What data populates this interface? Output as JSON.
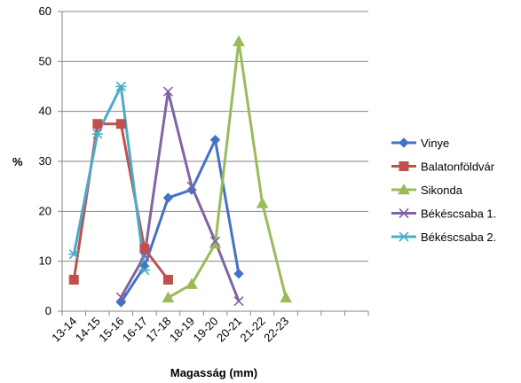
{
  "chart_data": {
    "type": "line",
    "title": "",
    "xlabel": "Magasság (mm)",
    "ylabel": "%",
    "ylim": [
      0,
      60
    ],
    "yticks": [
      0,
      10,
      20,
      30,
      40,
      50,
      60
    ],
    "categories": [
      "13-14",
      "14-15",
      "15-16",
      "16-17",
      "17-18",
      "18-19",
      "19-20",
      "20-21",
      "21-22",
      "22-23",
      "",
      "",
      ""
    ],
    "grid": "horizontal",
    "legend_position": "right",
    "series": [
      {
        "name": "Vinye",
        "color": "#4472C4",
        "marker": "diamond",
        "points": [
          [
            2.5,
            1.8
          ],
          [
            3.5,
            9.0
          ],
          [
            4.5,
            22.7
          ],
          [
            5.5,
            24.3
          ],
          [
            6.5,
            34.3
          ],
          [
            7.5,
            7.5
          ]
        ]
      },
      {
        "name": "Balatonföldvár",
        "color": "#C0504D",
        "marker": "square",
        "points": [
          [
            0.5,
            6.3
          ],
          [
            1.5,
            37.5
          ],
          [
            2.5,
            37.5
          ],
          [
            3.5,
            12.5
          ],
          [
            4.5,
            6.3
          ]
        ]
      },
      {
        "name": "Sikonda",
        "color": "#9BBB59",
        "marker": "triangle",
        "points": [
          [
            4.5,
            2.7
          ],
          [
            5.5,
            5.4
          ],
          [
            6.5,
            13.5
          ],
          [
            7.5,
            54.0
          ],
          [
            8.5,
            21.6
          ],
          [
            9.5,
            2.7
          ]
        ]
      },
      {
        "name": "Békéscsaba 1.",
        "color": "#8064A2",
        "marker": "x",
        "points": [
          [
            2.5,
            2.8
          ],
          [
            3.5,
            11.1
          ],
          [
            4.5,
            44.0
          ],
          [
            5.5,
            25.0
          ],
          [
            6.5,
            14.0
          ],
          [
            7.5,
            2.0
          ]
        ]
      },
      {
        "name": "Békéscsaba 2.",
        "color": "#4BACC6",
        "marker": "star",
        "points": [
          [
            0.5,
            11.4
          ],
          [
            1.5,
            35.5
          ],
          [
            2.5,
            45.0
          ],
          [
            3.5,
            8.2
          ]
        ]
      }
    ]
  }
}
